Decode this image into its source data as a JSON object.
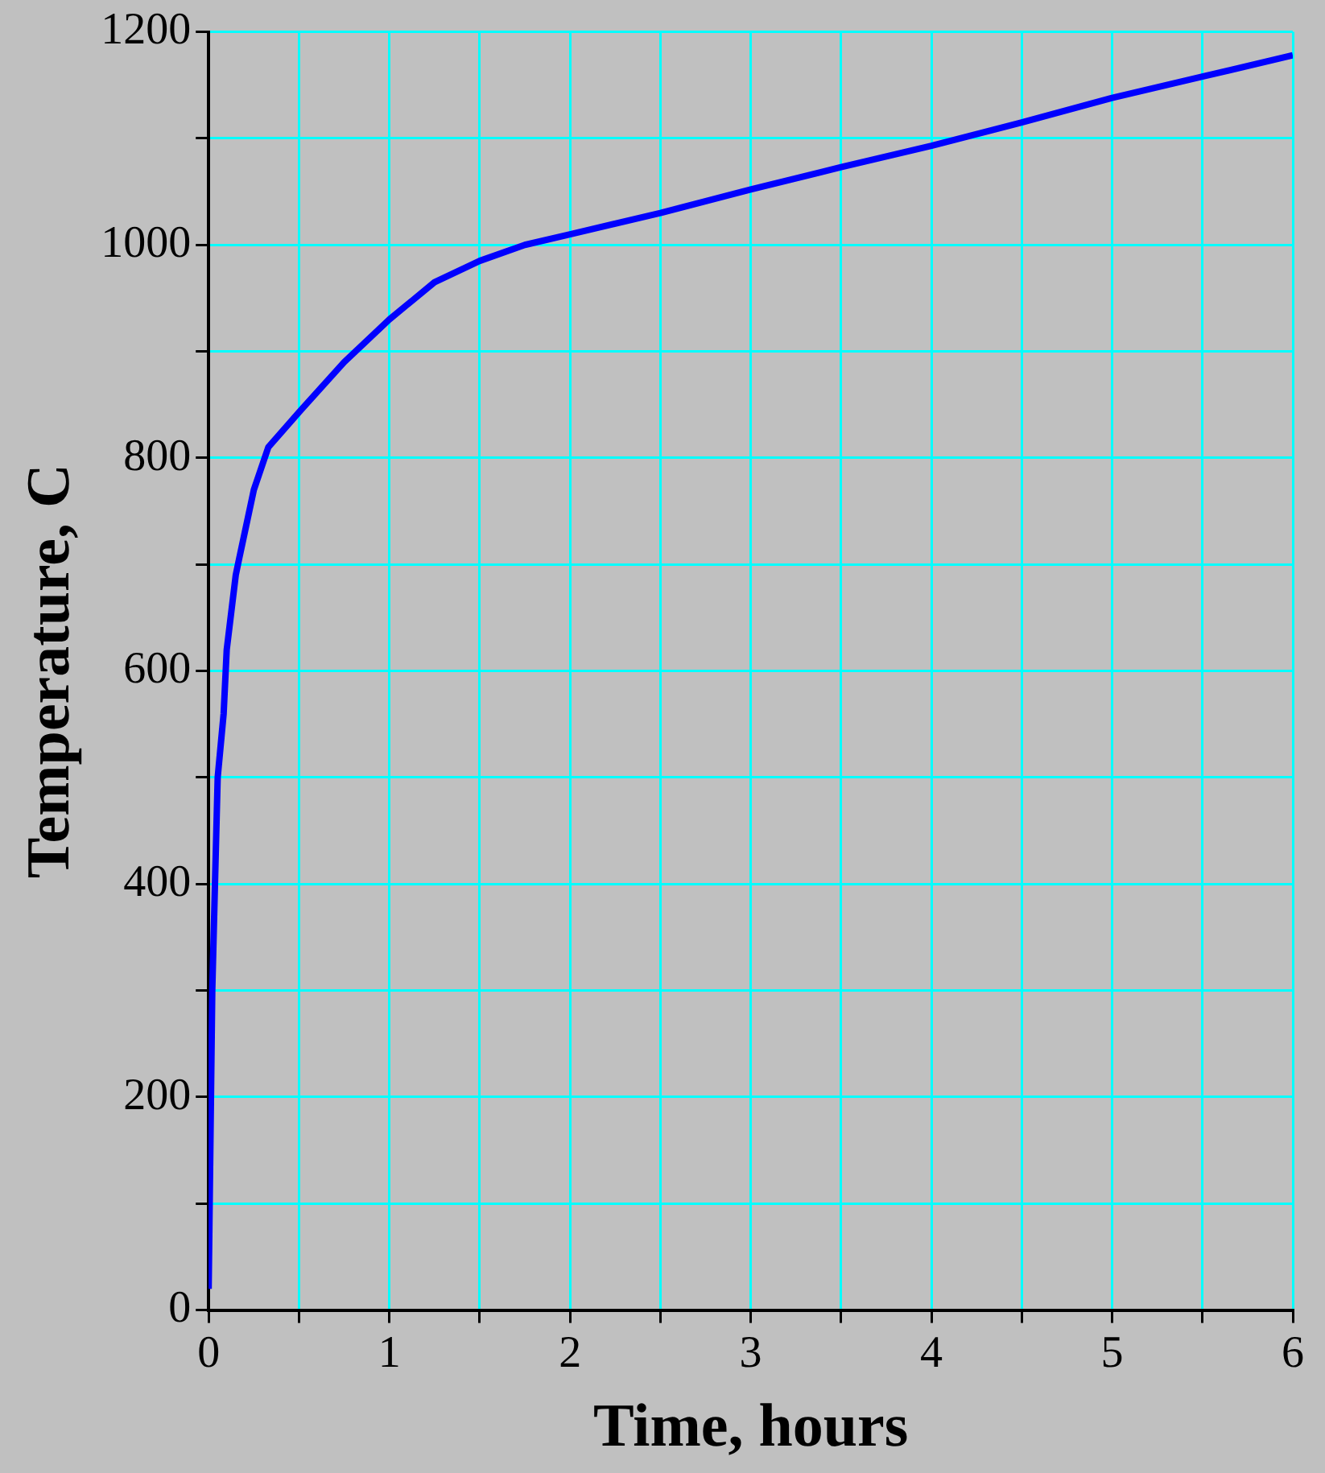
{
  "chart_data": {
    "type": "line",
    "xlabel": "Time, hours",
    "ylabel": "Temperature, C",
    "x": [
      0,
      0.02,
      0.05,
      0.083,
      0.1,
      0.15,
      0.167,
      0.25,
      0.33,
      0.5,
      0.75,
      1,
      1.25,
      1.5,
      1.75,
      2,
      2.5,
      3,
      3.5,
      4,
      4.5,
      5,
      5.5,
      6
    ],
    "series": [
      {
        "color": "#0000ff",
        "values": [
          20,
          300,
          500,
          560,
          620,
          690,
          704,
          770,
          810,
          843,
          890,
          930,
          965,
          985,
          1000,
          1010,
          1030,
          1052,
          1073,
          1093,
          1115,
          1138,
          1158,
          1178
        ]
      }
    ],
    "xlim": [
      0,
      6
    ],
    "xticks": [
      0,
      {
        "value": 0.5,
        "label": null
      },
      1,
      {
        "value": 1.5,
        "label": null
      },
      2,
      {
        "value": 2.5,
        "label": null
      },
      3,
      {
        "value": 3.5,
        "label": null
      },
      4,
      {
        "value": 4.5,
        "label": null
      },
      5,
      {
        "value": 5.5,
        "label": null
      },
      6
    ],
    "ylim": [
      0,
      1200
    ],
    "yticks": [
      0,
      {
        "value": 100,
        "label": null
      },
      200,
      {
        "value": 300,
        "label": null
      },
      400,
      {
        "value": 500,
        "label": null
      },
      600,
      {
        "value": 700,
        "label": null
      },
      800,
      {
        "value": 900,
        "label": null
      },
      1000,
      {
        "value": 1100,
        "label": null
      },
      1200
    ],
    "grid": true,
    "legend": false,
    "marker": "none",
    "line_style": "solid"
  }
}
